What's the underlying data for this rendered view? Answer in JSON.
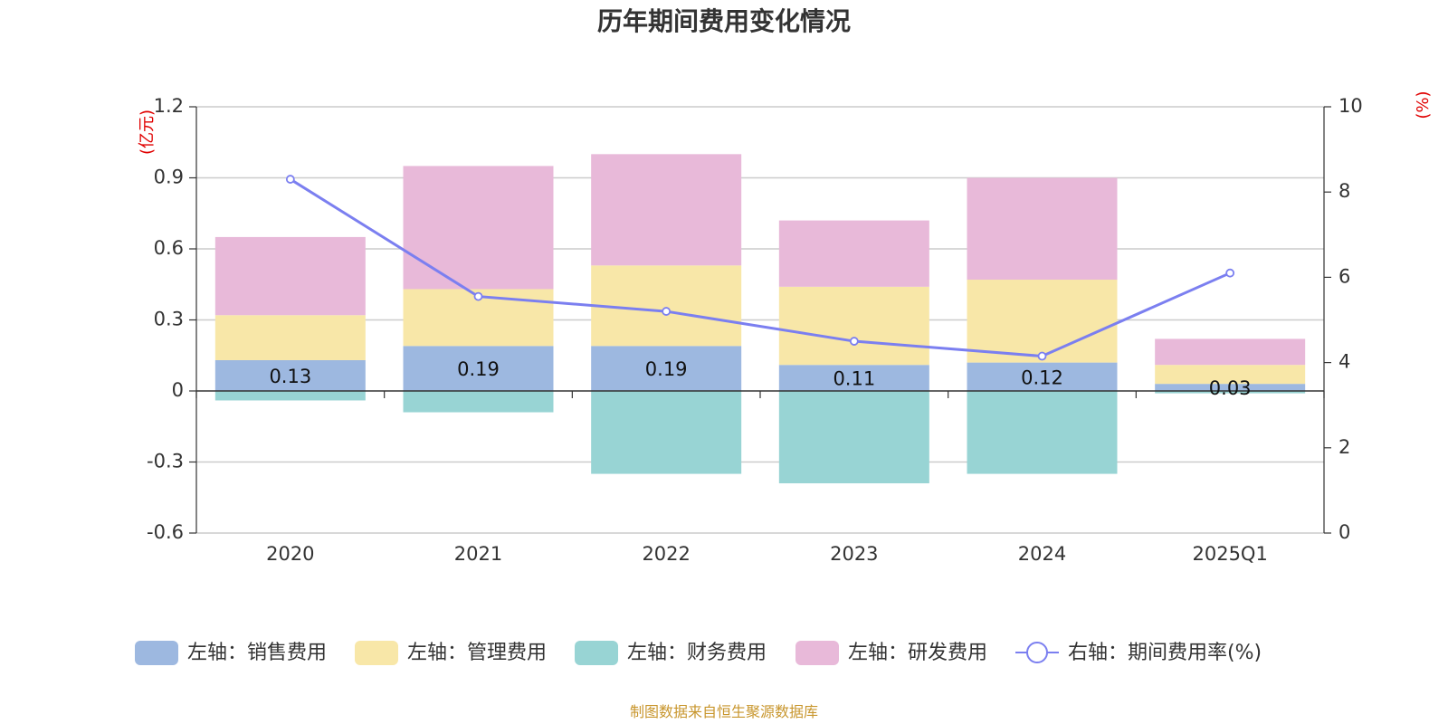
{
  "chart_data": {
    "type": "bar",
    "title": "历年期间费用变化情况",
    "categories": [
      "2020",
      "2021",
      "2022",
      "2023",
      "2024",
      "2025Q1"
    ],
    "left_axis": {
      "unit": "(亿元)",
      "ticks": [
        "1.2",
        "0.9",
        "0.6",
        "0.3",
        "0",
        "-0.3",
        "-0.6"
      ],
      "ylim": [
        -0.6,
        1.2
      ]
    },
    "right_axis": {
      "unit": "(%)",
      "ticks": [
        "10",
        "8",
        "6",
        "4",
        "2",
        "0"
      ],
      "ylim": [
        0,
        10
      ]
    },
    "series": [
      {
        "name": "左轴：销售费用",
        "axis": "left",
        "kind": "bar",
        "color": "#9db8e0",
        "values": [
          0.13,
          0.19,
          0.19,
          0.11,
          0.12,
          0.03
        ]
      },
      {
        "name": "左轴：管理费用",
        "axis": "left",
        "kind": "bar",
        "color": "#f8e7a8",
        "values": [
          0.19,
          0.24,
          0.34,
          0.33,
          0.35,
          0.08
        ]
      },
      {
        "name": "左轴：财务费用",
        "axis": "left",
        "kind": "bar",
        "color": "#98d4d4",
        "values": [
          -0.04,
          -0.09,
          -0.35,
          -0.39,
          -0.35,
          -0.01
        ]
      },
      {
        "name": "左轴：研发费用",
        "axis": "left",
        "kind": "bar",
        "color": "#e8b9d9",
        "values": [
          0.33,
          0.52,
          0.47,
          0.28,
          0.43,
          0.11
        ]
      },
      {
        "name": "右轴：期间费用率(%)",
        "axis": "right",
        "kind": "line",
        "color": "#7b7ff0",
        "values": [
          8.3,
          5.55,
          5.2,
          4.5,
          4.15,
          6.1
        ]
      }
    ],
    "data_labels": [
      "0.13",
      "0.19",
      "0.19",
      "0.11",
      "0.12",
      "0.03"
    ],
    "grid": true,
    "legend_position": "bottom"
  },
  "source": "制图数据来自恒生聚源数据库"
}
